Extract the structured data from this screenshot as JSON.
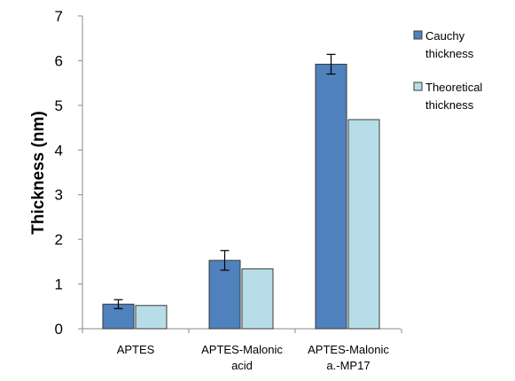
{
  "chart_data": {
    "type": "bar",
    "title": "",
    "xlabel": "",
    "ylabel": "Thickness (nm)",
    "ylim": [
      0,
      7
    ],
    "yticks": [
      0,
      1,
      2,
      3,
      4,
      5,
      6,
      7
    ],
    "grid": false,
    "legend_position": "right",
    "categories": [
      [
        "APTES"
      ],
      [
        "APTES-Malonic",
        "acid"
      ],
      [
        "APTES-Malonic",
        "a.-MP17"
      ]
    ],
    "series": [
      {
        "name": [
          "Cauchy",
          "thickness"
        ],
        "color": "#4f81bd",
        "values": [
          0.55,
          1.53,
          5.92
        ],
        "errors": [
          0.1,
          0.22,
          0.22
        ]
      },
      {
        "name": [
          "Theoretical",
          "thickness"
        ],
        "color": "#b7dee8",
        "values": [
          0.52,
          1.34,
          4.68
        ],
        "errors": null
      }
    ]
  }
}
